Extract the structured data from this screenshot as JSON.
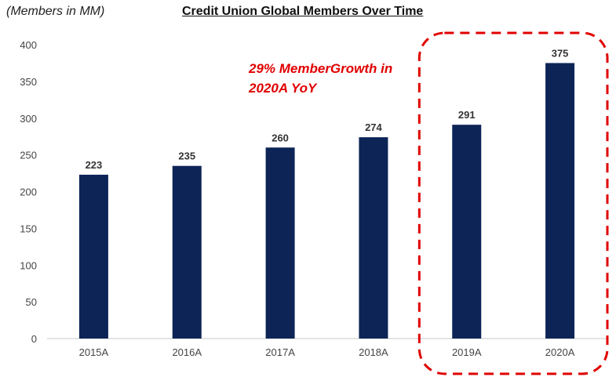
{
  "header": {
    "units": "(Members in MM)",
    "title": "Credit Union Global Members Over Time"
  },
  "chart_data": {
    "type": "bar",
    "title": "Credit Union Global Members Over Time",
    "subtitle": "(Members in MM)",
    "xlabel": "",
    "ylabel": "",
    "categories": [
      "2015A",
      "2016A",
      "2017A",
      "2018A",
      "2019A",
      "2020A"
    ],
    "values": [
      223,
      235,
      260,
      274,
      291,
      375
    ],
    "data_labels": [
      "223",
      "235",
      "260",
      "274",
      "291",
      "375"
    ],
    "ylim": [
      0,
      400
    ],
    "yticks": [
      "0",
      "50",
      "100",
      "150",
      "200",
      "250",
      "300",
      "350",
      "400"
    ],
    "grid": false,
    "legend": "none",
    "bar_color": "#0d2457",
    "highlight": {
      "categories": [
        "2019A",
        "2020A"
      ],
      "style": "dashed red rounded box",
      "color": "#e00000"
    },
    "annotation": {
      "lines": [
        "29% MemberGrowth in",
        "2020A YoY"
      ],
      "color": "#e00000"
    }
  }
}
